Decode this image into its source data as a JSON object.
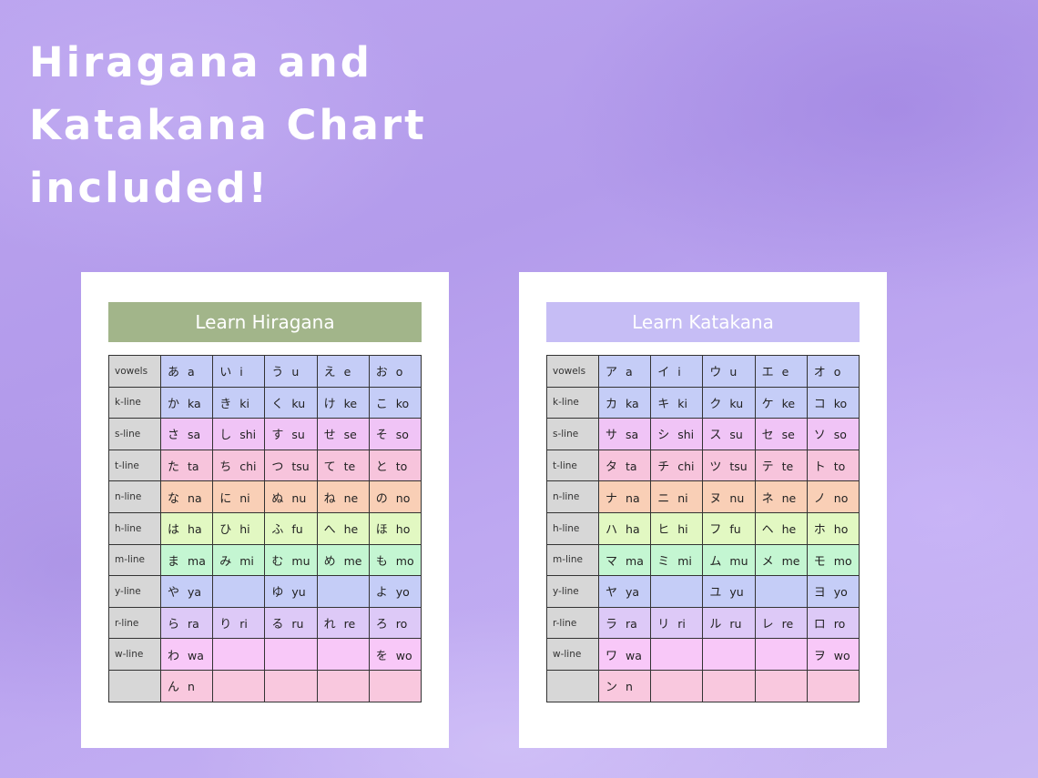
{
  "headline": "Hiragana and Katakana Chart included!",
  "colors": {
    "row_colors": [
      "#c5cdf7",
      "#c5cdf7",
      "#f0c4f6",
      "#f7c4dc",
      "#f9cfb6",
      "#e2f8c2",
      "#c4f6d2",
      "#c5cdf7",
      "#ddc9f7",
      "#f8c8f8",
      "#f9c8de"
    ],
    "row_label_bg": "#d7d7d7",
    "hiragana_banner": "#a2b58a",
    "katakana_banner": "#c6bdf5"
  },
  "hiragana": {
    "title": "Learn Hiragana",
    "rows": [
      {
        "label": "vowels",
        "cells": [
          {
            "k": "あ",
            "r": "a"
          },
          {
            "k": "い",
            "r": "i"
          },
          {
            "k": "う",
            "r": "u"
          },
          {
            "k": "え",
            "r": "e"
          },
          {
            "k": "お",
            "r": "o"
          }
        ]
      },
      {
        "label": "k-line",
        "cells": [
          {
            "k": "か",
            "r": "ka"
          },
          {
            "k": "き",
            "r": "ki"
          },
          {
            "k": "く",
            "r": "ku"
          },
          {
            "k": "け",
            "r": "ke"
          },
          {
            "k": "こ",
            "r": "ko"
          }
        ]
      },
      {
        "label": "s-line",
        "cells": [
          {
            "k": "さ",
            "r": "sa"
          },
          {
            "k": "し",
            "r": "shi"
          },
          {
            "k": "す",
            "r": "su"
          },
          {
            "k": "せ",
            "r": "se"
          },
          {
            "k": "そ",
            "r": "so"
          }
        ]
      },
      {
        "label": "t-line",
        "cells": [
          {
            "k": "た",
            "r": "ta"
          },
          {
            "k": "ち",
            "r": "chi"
          },
          {
            "k": "つ",
            "r": "tsu"
          },
          {
            "k": "て",
            "r": "te"
          },
          {
            "k": "と",
            "r": "to"
          }
        ]
      },
      {
        "label": "n-line",
        "cells": [
          {
            "k": "な",
            "r": "na"
          },
          {
            "k": "に",
            "r": "ni"
          },
          {
            "k": "ぬ",
            "r": "nu"
          },
          {
            "k": "ね",
            "r": "ne"
          },
          {
            "k": "の",
            "r": "no"
          }
        ]
      },
      {
        "label": "h-line",
        "cells": [
          {
            "k": "は",
            "r": "ha"
          },
          {
            "k": "ひ",
            "r": "hi"
          },
          {
            "k": "ふ",
            "r": "fu"
          },
          {
            "k": "へ",
            "r": "he"
          },
          {
            "k": "ほ",
            "r": "ho"
          }
        ]
      },
      {
        "label": "m-line",
        "cells": [
          {
            "k": "ま",
            "r": "ma"
          },
          {
            "k": "み",
            "r": "mi"
          },
          {
            "k": "む",
            "r": "mu"
          },
          {
            "k": "め",
            "r": "me"
          },
          {
            "k": "も",
            "r": "mo"
          }
        ]
      },
      {
        "label": "y-line",
        "cells": [
          {
            "k": "や",
            "r": "ya"
          },
          {
            "k": "",
            "r": ""
          },
          {
            "k": "ゆ",
            "r": "yu"
          },
          {
            "k": "",
            "r": ""
          },
          {
            "k": "よ",
            "r": "yo"
          }
        ]
      },
      {
        "label": "r-line",
        "cells": [
          {
            "k": "ら",
            "r": "ra"
          },
          {
            "k": "り",
            "r": "ri"
          },
          {
            "k": "る",
            "r": "ru"
          },
          {
            "k": "れ",
            "r": "re"
          },
          {
            "k": "ろ",
            "r": "ro"
          }
        ]
      },
      {
        "label": "w-line",
        "cells": [
          {
            "k": "わ",
            "r": "wa"
          },
          {
            "k": "",
            "r": ""
          },
          {
            "k": "",
            "r": ""
          },
          {
            "k": "",
            "r": ""
          },
          {
            "k": "を",
            "r": "wo"
          }
        ]
      },
      {
        "label": "",
        "cells": [
          {
            "k": "ん",
            "r": "n"
          },
          {
            "k": "",
            "r": ""
          },
          {
            "k": "",
            "r": ""
          },
          {
            "k": "",
            "r": ""
          },
          {
            "k": "",
            "r": ""
          }
        ]
      }
    ]
  },
  "katakana": {
    "title": "Learn Katakana",
    "rows": [
      {
        "label": "vowels",
        "cells": [
          {
            "k": "ア",
            "r": "a"
          },
          {
            "k": "イ",
            "r": "i"
          },
          {
            "k": "ウ",
            "r": "u"
          },
          {
            "k": "エ",
            "r": "e"
          },
          {
            "k": "オ",
            "r": "o"
          }
        ]
      },
      {
        "label": "k-line",
        "cells": [
          {
            "k": "カ",
            "r": "ka"
          },
          {
            "k": "キ",
            "r": "ki"
          },
          {
            "k": "ク",
            "r": "ku"
          },
          {
            "k": "ケ",
            "r": "ke"
          },
          {
            "k": "コ",
            "r": "ko"
          }
        ]
      },
      {
        "label": "s-line",
        "cells": [
          {
            "k": "サ",
            "r": "sa"
          },
          {
            "k": "シ",
            "r": "shi"
          },
          {
            "k": "ス",
            "r": "su"
          },
          {
            "k": "セ",
            "r": "se"
          },
          {
            "k": "ソ",
            "r": "so"
          }
        ]
      },
      {
        "label": "t-line",
        "cells": [
          {
            "k": "タ",
            "r": "ta"
          },
          {
            "k": "チ",
            "r": "chi"
          },
          {
            "k": "ツ",
            "r": "tsu"
          },
          {
            "k": "テ",
            "r": "te"
          },
          {
            "k": "ト",
            "r": "to"
          }
        ]
      },
      {
        "label": "n-line",
        "cells": [
          {
            "k": "ナ",
            "r": "na"
          },
          {
            "k": "ニ",
            "r": "ni"
          },
          {
            "k": "ヌ",
            "r": "nu"
          },
          {
            "k": "ネ",
            "r": "ne"
          },
          {
            "k": "ノ",
            "r": "no"
          }
        ]
      },
      {
        "label": "h-line",
        "cells": [
          {
            "k": "ハ",
            "r": "ha"
          },
          {
            "k": "ヒ",
            "r": "hi"
          },
          {
            "k": "フ",
            "r": "fu"
          },
          {
            "k": "ヘ",
            "r": "he"
          },
          {
            "k": "ホ",
            "r": "ho"
          }
        ]
      },
      {
        "label": "m-line",
        "cells": [
          {
            "k": "マ",
            "r": "ma"
          },
          {
            "k": "ミ",
            "r": "mi"
          },
          {
            "k": "ム",
            "r": "mu"
          },
          {
            "k": "メ",
            "r": "me"
          },
          {
            "k": "モ",
            "r": "mo"
          }
        ]
      },
      {
        "label": "y-line",
        "cells": [
          {
            "k": "ヤ",
            "r": "ya"
          },
          {
            "k": "",
            "r": ""
          },
          {
            "k": "ユ",
            "r": "yu"
          },
          {
            "k": "",
            "r": ""
          },
          {
            "k": "ヨ",
            "r": "yo"
          }
        ]
      },
      {
        "label": "r-line",
        "cells": [
          {
            "k": "ラ",
            "r": "ra"
          },
          {
            "k": "リ",
            "r": "ri"
          },
          {
            "k": "ル",
            "r": "ru"
          },
          {
            "k": "レ",
            "r": "re"
          },
          {
            "k": "ロ",
            "r": "ro"
          }
        ]
      },
      {
        "label": "w-line",
        "cells": [
          {
            "k": "ワ",
            "r": "wa"
          },
          {
            "k": "",
            "r": ""
          },
          {
            "k": "",
            "r": ""
          },
          {
            "k": "",
            "r": ""
          },
          {
            "k": "ヲ",
            "r": "wo"
          }
        ]
      },
      {
        "label": "",
        "cells": [
          {
            "k": "ン",
            "r": "n"
          },
          {
            "k": "",
            "r": ""
          },
          {
            "k": "",
            "r": ""
          },
          {
            "k": "",
            "r": ""
          },
          {
            "k": "",
            "r": ""
          }
        ]
      }
    ]
  }
}
